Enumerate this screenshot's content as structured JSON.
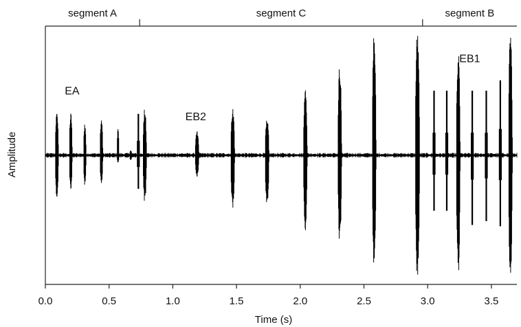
{
  "chart_data": {
    "type": "line",
    "title": "",
    "xlabel": "Time (s)",
    "ylabel": "Amplitude",
    "xlim": [
      0.0,
      3.7
    ],
    "ylim": [
      -1.0,
      1.0
    ],
    "x_ticks": [
      0.0,
      0.5,
      1.0,
      1.5,
      2.0,
      2.5,
      3.0,
      3.5
    ],
    "x_tick_labels": [
      "0.0",
      "0.5",
      "1.0",
      "1.5",
      "2.0",
      "2.5",
      "3.0",
      "3.5"
    ],
    "y_ticks": [],
    "grid": false,
    "colors": {
      "trace": "#000000",
      "axis": "#222222",
      "background": "#ffffff"
    },
    "segments": [
      {
        "label": "segment A",
        "start": 0.0,
        "end": 0.74
      },
      {
        "label": "segment C",
        "start": 0.74,
        "end": 2.96
      },
      {
        "label": "segment B",
        "start": 2.96,
        "end": 3.7
      }
    ],
    "annotations": [
      {
        "text": "EA",
        "x": 0.21,
        "y": 0.47
      },
      {
        "text": "EB2",
        "x": 1.18,
        "y": 0.27
      },
      {
        "text": "EB1",
        "x": 3.33,
        "y": 0.72
      }
    ],
    "bursts": [
      {
        "t": 0.09,
        "pos": 0.33,
        "neg": 0.33,
        "w": 0.025,
        "spike": false
      },
      {
        "t": 0.2,
        "pos": 0.36,
        "neg": 0.29,
        "w": 0.022,
        "spike": false
      },
      {
        "t": 0.31,
        "pos": 0.25,
        "neg": 0.24,
        "w": 0.02,
        "spike": false
      },
      {
        "t": 0.44,
        "pos": 0.3,
        "neg": 0.24,
        "w": 0.022,
        "spike": false
      },
      {
        "t": 0.57,
        "pos": 0.22,
        "neg": 0.06,
        "w": 0.012,
        "spike": false
      },
      {
        "t": 0.67,
        "pos": 0.04,
        "neg": 0.04,
        "w": 0.012,
        "spike": false
      },
      {
        "t": 0.73,
        "pos": 0.32,
        "neg": 0.26,
        "w": 0.006,
        "spike": true
      },
      {
        "t": 0.78,
        "pos": 0.37,
        "neg": 0.37,
        "w": 0.028,
        "spike": false
      },
      {
        "t": 1.19,
        "pos": 0.19,
        "neg": 0.17,
        "w": 0.03,
        "spike": false
      },
      {
        "t": 1.47,
        "pos": 0.37,
        "neg": 0.42,
        "w": 0.03,
        "spike": false
      },
      {
        "t": 1.74,
        "pos": 0.31,
        "neg": 0.42,
        "w": 0.03,
        "spike": false
      },
      {
        "t": 2.04,
        "pos": 0.52,
        "neg": 0.6,
        "w": 0.03,
        "spike": false
      },
      {
        "t": 2.31,
        "pos": 0.71,
        "neg": 0.69,
        "w": 0.03,
        "spike": false
      },
      {
        "t": 2.58,
        "pos": 0.96,
        "neg": 0.88,
        "w": 0.03,
        "spike": false
      },
      {
        "t": 2.92,
        "pos": 0.98,
        "neg": 0.98,
        "w": 0.034,
        "spike": false
      },
      {
        "t": 3.05,
        "pos": 0.5,
        "neg": 0.43,
        "w": 0.006,
        "spike": true
      },
      {
        "t": 3.15,
        "pos": 0.5,
        "neg": 0.43,
        "w": 0.006,
        "spike": true
      },
      {
        "t": 3.24,
        "pos": 0.81,
        "neg": 0.94,
        "w": 0.03,
        "spike": false
      },
      {
        "t": 3.35,
        "pos": 0.5,
        "neg": 0.54,
        "w": 0.006,
        "spike": true
      },
      {
        "t": 3.46,
        "pos": 0.5,
        "neg": 0.51,
        "w": 0.006,
        "spike": true
      },
      {
        "t": 3.57,
        "pos": 0.58,
        "neg": 0.55,
        "w": 0.006,
        "spike": true
      },
      {
        "t": 3.65,
        "pos": 0.98,
        "neg": 0.98,
        "w": 0.03,
        "spike": false
      }
    ]
  }
}
